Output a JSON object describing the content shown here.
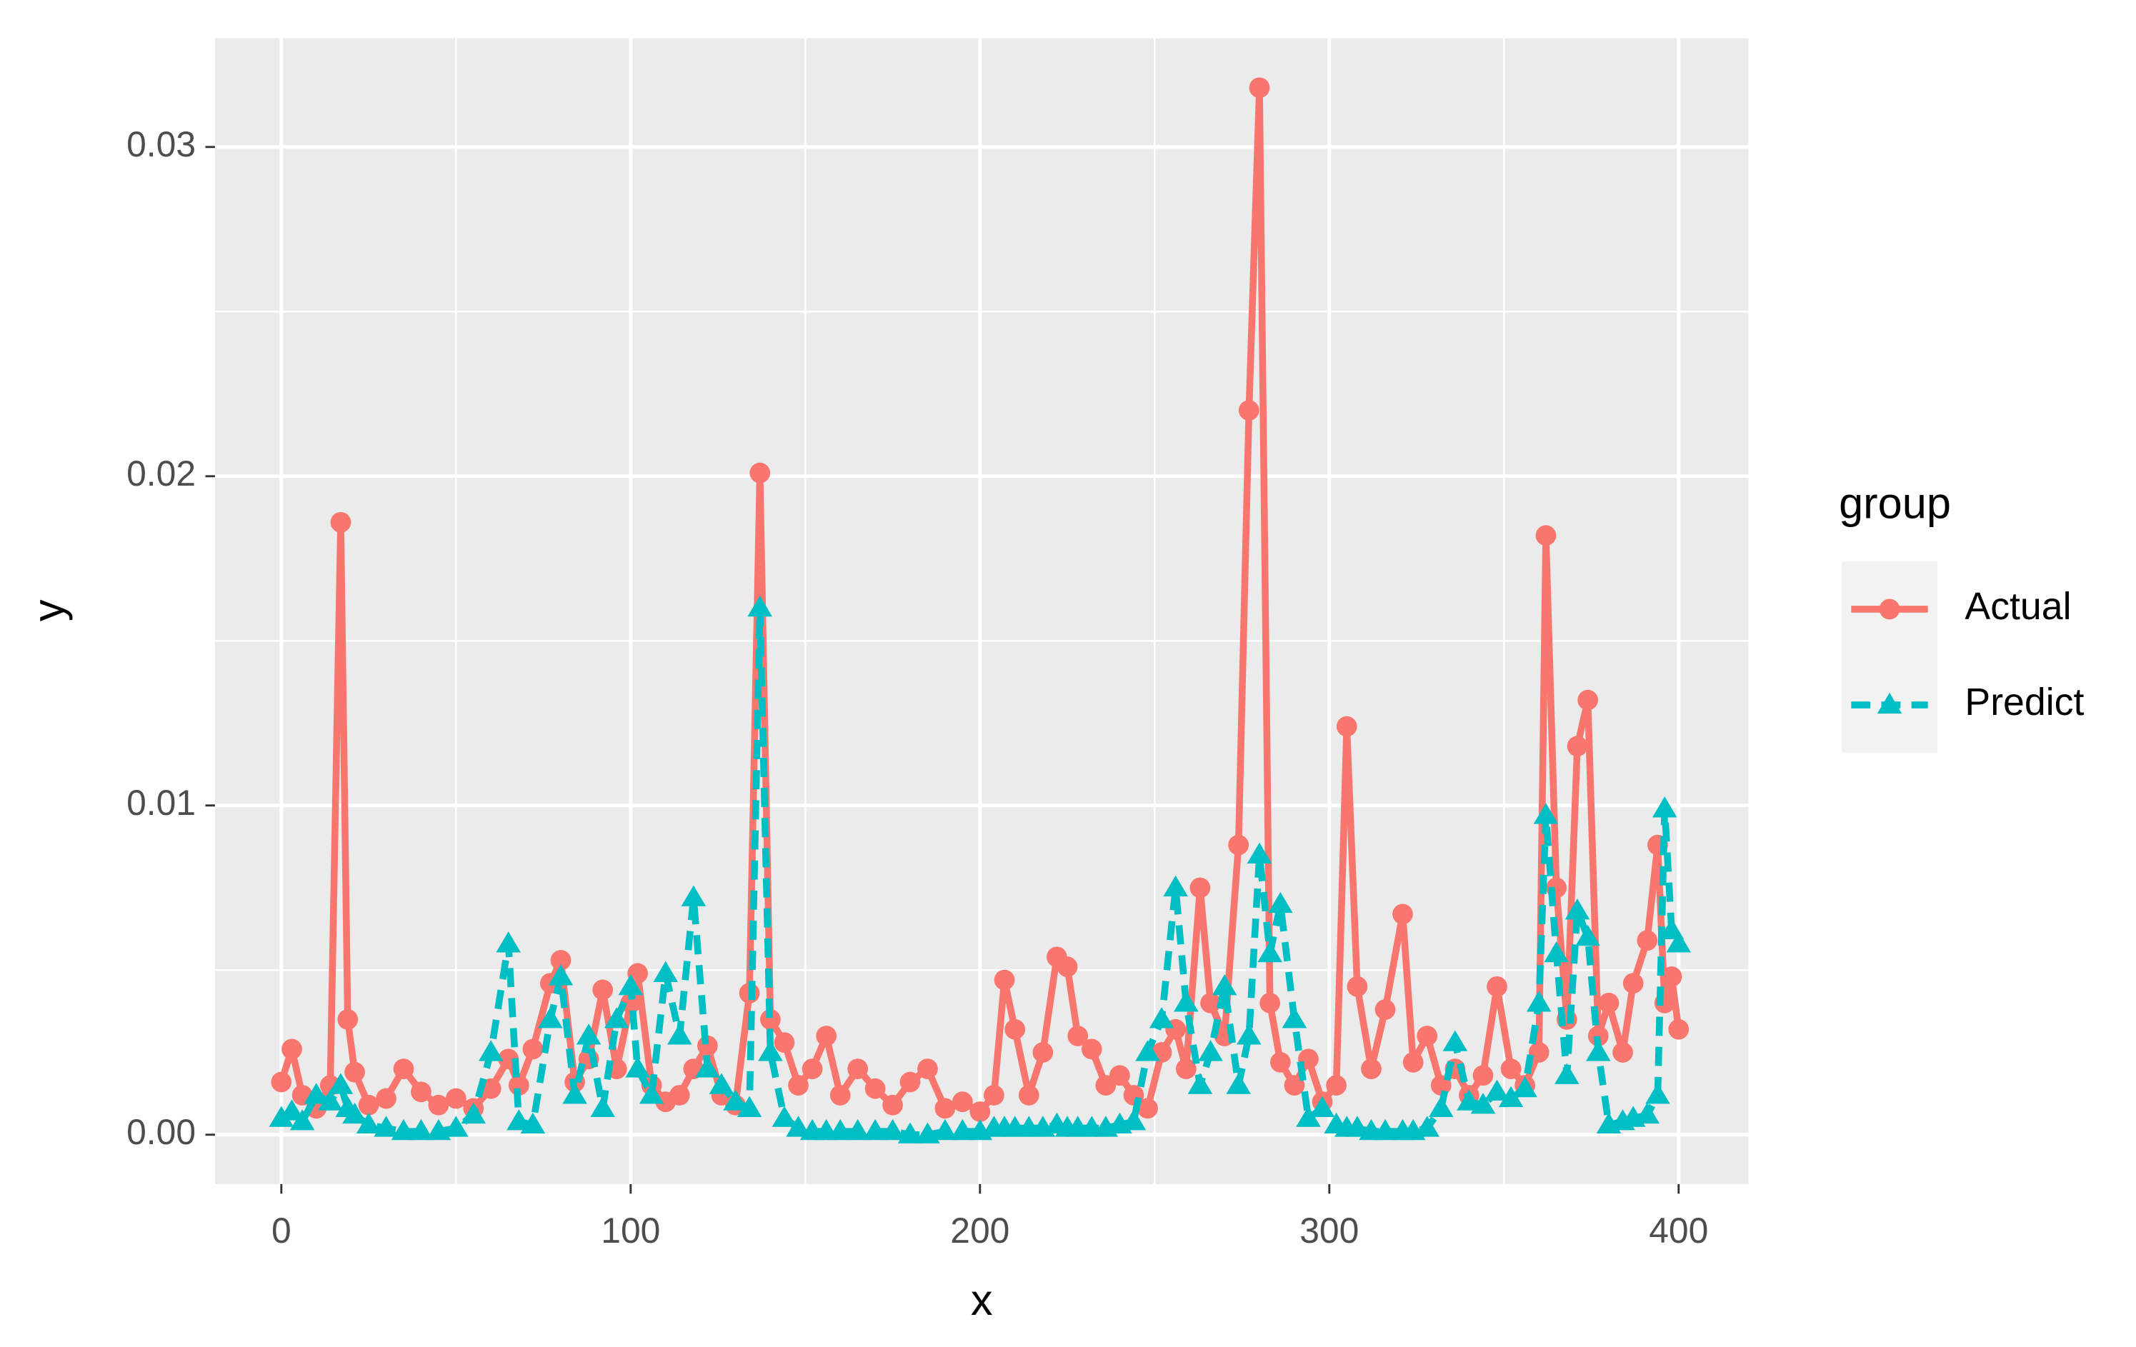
{
  "chart_data": {
    "type": "line",
    "x_label": "x",
    "y_label": "y",
    "legend_title": "group",
    "legend_position": "right",
    "grid": true,
    "background": "#EBEBEB",
    "x": [
      0,
      3,
      6,
      10,
      14,
      17,
      19,
      21,
      25,
      30,
      35,
      40,
      45,
      50,
      55,
      60,
      65,
      68,
      72,
      77,
      80,
      84,
      88,
      92,
      96,
      100,
      102,
      106,
      110,
      114,
      118,
      122,
      126,
      130,
      134,
      137,
      140,
      144,
      148,
      152,
      156,
      160,
      165,
      170,
      175,
      180,
      185,
      190,
      195,
      200,
      204,
      207,
      210,
      214,
      218,
      222,
      225,
      228,
      232,
      236,
      240,
      244,
      248,
      252,
      256,
      259,
      263,
      266,
      270,
      274,
      277,
      280,
      283,
      286,
      290,
      294,
      298,
      302,
      305,
      308,
      312,
      316,
      321,
      324,
      328,
      332,
      336,
      340,
      344,
      348,
      352,
      356,
      360,
      362,
      365,
      368,
      371,
      374,
      377,
      380,
      384,
      387,
      391,
      394,
      396,
      398,
      400
    ],
    "series": [
      {
        "name": "Actual",
        "color": "#F8766D",
        "marker": "circle",
        "dash": "solid",
        "values": [
          0.0016,
          0.0026,
          0.0012,
          0.0008,
          0.0015,
          0.0186,
          0.0035,
          0.0019,
          0.0009,
          0.0011,
          0.002,
          0.0013,
          0.0009,
          0.0011,
          0.0008,
          0.0014,
          0.0023,
          0.0015,
          0.0026,
          0.0046,
          0.0053,
          0.0016,
          0.0023,
          0.0044,
          0.002,
          0.004,
          0.0049,
          0.0015,
          0.001,
          0.0012,
          0.002,
          0.0027,
          0.0012,
          0.0009,
          0.0043,
          0.0201,
          0.0035,
          0.0028,
          0.0015,
          0.002,
          0.003,
          0.0012,
          0.002,
          0.0014,
          0.0009,
          0.0016,
          0.002,
          0.0008,
          0.001,
          0.0007,
          0.0012,
          0.0047,
          0.0032,
          0.0012,
          0.0025,
          0.0054,
          0.0051,
          0.003,
          0.0026,
          0.0015,
          0.0018,
          0.0012,
          0.0008,
          0.0025,
          0.0032,
          0.002,
          0.0075,
          0.004,
          0.003,
          0.0088,
          0.022,
          0.0318,
          0.004,
          0.0022,
          0.0015,
          0.0023,
          0.001,
          0.0015,
          0.0124,
          0.0045,
          0.002,
          0.0038,
          0.0067,
          0.0022,
          0.003,
          0.0015,
          0.002,
          0.0012,
          0.0018,
          0.0045,
          0.002,
          0.0015,
          0.0025,
          0.0182,
          0.0075,
          0.0035,
          0.0118,
          0.0132,
          0.003,
          0.004,
          0.0025,
          0.0046,
          0.0059,
          0.0088,
          0.004,
          0.0048,
          0.0032
        ]
      },
      {
        "name": "Predict",
        "color": "#00BFC4",
        "marker": "triangle",
        "dash": "dashed",
        "values": [
          0.0005,
          0.0007,
          0.0004,
          0.0012,
          0.001,
          0.0015,
          0.0008,
          0.0006,
          0.0003,
          0.0002,
          0.0001,
          0.0001,
          0.0001,
          0.0002,
          0.0006,
          0.0025,
          0.0058,
          0.0004,
          0.0003,
          0.0035,
          0.0048,
          0.0012,
          0.003,
          0.0008,
          0.0035,
          0.0045,
          0.002,
          0.0012,
          0.0049,
          0.003,
          0.0072,
          0.002,
          0.0015,
          0.001,
          0.0008,
          0.016,
          0.0025,
          0.0005,
          0.0002,
          0.0001,
          0.0001,
          0.0001,
          0.0001,
          0.0001,
          0.0001,
          0.0,
          0.0,
          0.0001,
          0.0001,
          0.0001,
          0.0002,
          0.0002,
          0.0002,
          0.0002,
          0.0002,
          0.0003,
          0.0002,
          0.0002,
          0.0002,
          0.0002,
          0.0003,
          0.0004,
          0.0025,
          0.0035,
          0.0075,
          0.004,
          0.0015,
          0.0025,
          0.0045,
          0.0015,
          0.003,
          0.0085,
          0.0055,
          0.007,
          0.0035,
          0.0005,
          0.0008,
          0.0003,
          0.0002,
          0.0002,
          0.0001,
          0.0001,
          0.0001,
          0.0001,
          0.0002,
          0.0008,
          0.0028,
          0.001,
          0.0009,
          0.0013,
          0.0011,
          0.0014,
          0.004,
          0.0097,
          0.0055,
          0.0018,
          0.0068,
          0.006,
          0.0025,
          0.0003,
          0.0004,
          0.0005,
          0.0006,
          0.0012,
          0.0099,
          0.0062,
          0.0058
        ]
      }
    ],
    "xlim": [
      -19,
      420
    ],
    "ylim": [
      -0.0015,
      0.0333
    ],
    "xticks": [
      0,
      100,
      200,
      300,
      400
    ],
    "yticks": [
      {
        "value": 0,
        "label": "0.00"
      },
      0.01,
      0.02,
      0.03
    ],
    "xminorticks": [
      50,
      150,
      250,
      350
    ],
    "yminorticks": [
      0.005,
      0.015,
      0.025
    ]
  }
}
